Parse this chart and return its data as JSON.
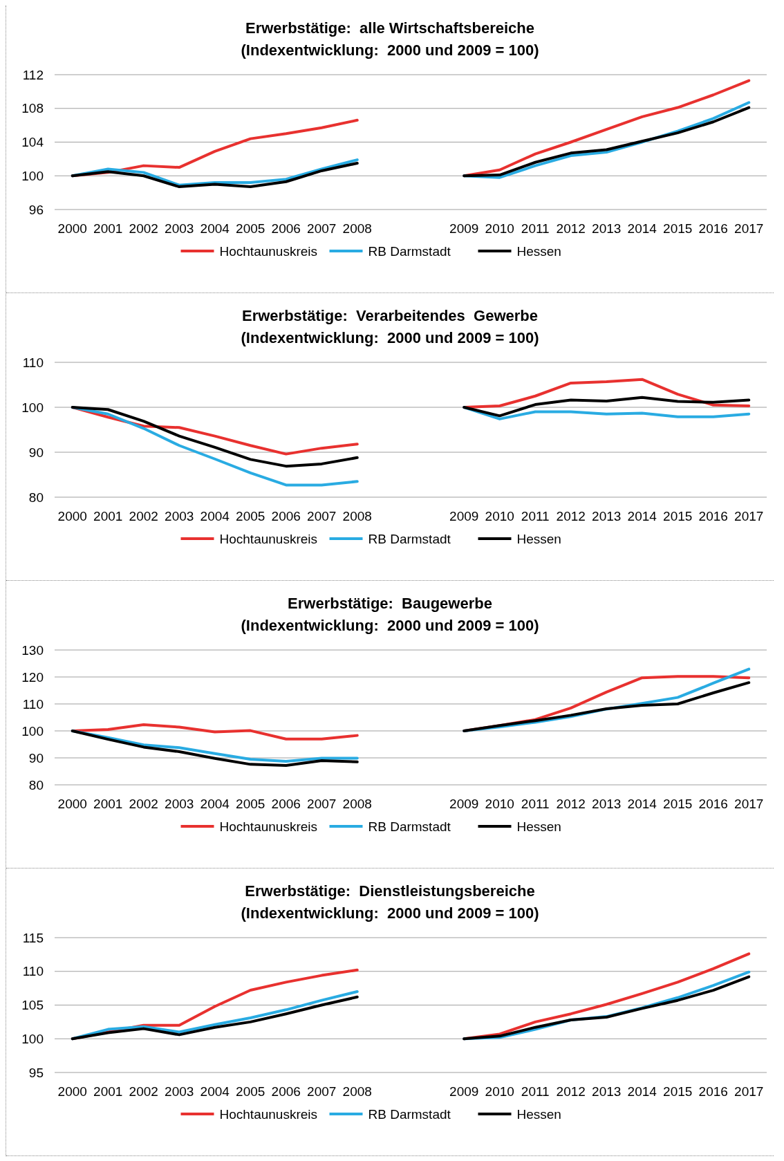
{
  "chart_data": [
    {
      "type": "line",
      "title": "Erwerbstätige:  alle Wirtschaftsbereiche",
      "subtitle": "(Indexentwicklung:  2000 und 2009 = 100)",
      "categories": [
        "2000",
        "2001",
        "2002",
        "2003",
        "2004",
        "2005",
        "2006",
        "2007",
        "2008",
        null,
        null,
        "2009",
        "2010",
        "2011",
        "2012",
        "2013",
        "2014",
        "2015",
        "2016",
        "2017"
      ],
      "ylim": [
        96,
        112
      ],
      "yticks": [
        96,
        100,
        104,
        108,
        112
      ],
      "grid": "y",
      "legend": "bottom",
      "marker": "none",
      "line_style": "solid",
      "series": [
        {
          "name": "Hochtaunuskreis",
          "color": "#e8312f",
          "values": [
            100,
            100.4,
            101.2,
            101.0,
            102.9,
            104.4,
            105.0,
            105.7,
            106.6,
            null,
            null,
            100,
            100.7,
            102.6,
            104.0,
            105.5,
            107.0,
            108.1,
            109.6,
            111.3
          ]
        },
        {
          "name": "RB Darmstadt",
          "color": "#29abe2",
          "values": [
            100,
            100.8,
            100.4,
            98.9,
            99.2,
            99.2,
            99.6,
            100.8,
            101.9,
            null,
            null,
            100,
            99.8,
            101.2,
            102.4,
            102.8,
            104.0,
            105.3,
            106.8,
            108.7
          ]
        },
        {
          "name": "Hessen",
          "color": "#000000",
          "values": [
            100,
            100.5,
            100.0,
            98.7,
            99.0,
            98.7,
            99.3,
            100.6,
            101.5,
            null,
            null,
            100,
            100.1,
            101.6,
            102.7,
            103.1,
            104.1,
            105.1,
            106.4,
            108.1
          ]
        }
      ]
    },
    {
      "type": "line",
      "title": "Erwerbstätige:  Verarbeitendes  Gewerbe",
      "subtitle": "(Indexentwicklung:  2000 und 2009 = 100)",
      "categories": [
        "2000",
        "2001",
        "2002",
        "2003",
        "2004",
        "2005",
        "2006",
        "2007",
        "2008",
        null,
        null,
        "2009",
        "2010",
        "2011",
        "2012",
        "2013",
        "2014",
        "2015",
        "2016",
        "2017"
      ],
      "ylim": [
        80,
        110
      ],
      "yticks": [
        80,
        90,
        100,
        110
      ],
      "grid": "y",
      "legend": "bottom",
      "marker": "none",
      "line_style": "solid",
      "series": [
        {
          "name": "Hochtaunuskreis",
          "color": "#e8312f",
          "values": [
            100,
            97.8,
            95.8,
            95.5,
            93.6,
            91.5,
            89.6,
            90.9,
            91.8,
            null,
            null,
            100,
            100.3,
            102.5,
            105.4,
            105.7,
            106.2,
            102.9,
            100.5,
            100.3
          ]
        },
        {
          "name": "RB Darmstadt",
          "color": "#29abe2",
          "values": [
            100,
            98.5,
            95.3,
            91.5,
            88.5,
            85.4,
            82.7,
            82.7,
            83.5,
            null,
            null,
            100,
            97.4,
            99.0,
            99.0,
            98.5,
            98.7,
            97.9,
            97.9,
            98.5
          ]
        },
        {
          "name": "Hessen",
          "color": "#000000",
          "values": [
            100,
            99.5,
            96.9,
            93.6,
            91.1,
            88.4,
            86.9,
            87.4,
            88.8,
            null,
            null,
            100,
            98.1,
            100.6,
            101.6,
            101.4,
            102.2,
            101.3,
            101.1,
            101.6
          ]
        }
      ]
    },
    {
      "type": "line",
      "title": "Erwerbstätige:  Baugewerbe",
      "subtitle": "(Indexentwicklung:  2000 und 2009 = 100)",
      "categories": [
        "2000",
        "2001",
        "2002",
        "2003",
        "2004",
        "2005",
        "2006",
        "2007",
        "2008",
        null,
        null,
        "2009",
        "2010",
        "2011",
        "2012",
        "2013",
        "2014",
        "2015",
        "2016",
        "2017"
      ],
      "ylim": [
        80,
        130
      ],
      "yticks": [
        80,
        90,
        100,
        110,
        120,
        130
      ],
      "grid": "y",
      "legend": "bottom",
      "marker": "none",
      "line_style": "solid",
      "series": [
        {
          "name": "Hochtaunuskreis",
          "color": "#e8312f",
          "values": [
            100,
            100.5,
            102.3,
            101.4,
            99.6,
            100.1,
            97.0,
            97.0,
            98.3,
            null,
            null,
            100,
            102,
            104.2,
            108.5,
            114.4,
            119.7,
            120.2,
            120.2,
            119.7
          ]
        },
        {
          "name": "RB Darmstadt",
          "color": "#29abe2",
          "values": [
            100,
            97.5,
            94.8,
            93.8,
            91.6,
            89.5,
            88.7,
            89.9,
            89.9,
            null,
            null,
            100,
            101.5,
            103.2,
            105.3,
            108.1,
            110.2,
            112.4,
            117.7,
            122.9
          ]
        },
        {
          "name": "Hessen",
          "color": "#000000",
          "values": [
            100,
            96.9,
            94.0,
            92.3,
            89.8,
            87.6,
            87.2,
            89.0,
            88.5,
            null,
            null,
            100,
            102,
            103.8,
            105.8,
            108.2,
            109.5,
            110.0,
            114.1,
            117.9
          ]
        }
      ]
    },
    {
      "type": "line",
      "title": "Erwerbstätige:  Dienstleistungsbereiche",
      "subtitle": "(Indexentwicklung:  2000 und 2009 = 100)",
      "categories": [
        "2000",
        "2001",
        "2002",
        "2003",
        "2004",
        "2005",
        "2006",
        "2007",
        "2008",
        null,
        null,
        "2009",
        "2010",
        "2011",
        "2012",
        "2013",
        "2014",
        "2015",
        "2016",
        "2017"
      ],
      "ylim": [
        95,
        115
      ],
      "yticks": [
        95,
        100,
        105,
        110,
        115
      ],
      "grid": "y",
      "legend": "bottom",
      "marker": "none",
      "line_style": "solid",
      "series": [
        {
          "name": "Hochtaunuskreis",
          "color": "#e8312f",
          "values": [
            100,
            101.0,
            102.0,
            102.0,
            104.8,
            107.2,
            108.4,
            109.4,
            110.2,
            null,
            null,
            100,
            100.7,
            102.5,
            103.7,
            105.1,
            106.7,
            108.4,
            110.4,
            112.6
          ]
        },
        {
          "name": "RB Darmstadt",
          "color": "#29abe2",
          "values": [
            100,
            101.4,
            101.8,
            101.0,
            102.1,
            103.1,
            104.3,
            105.7,
            107.0,
            null,
            null,
            100,
            100.2,
            101.4,
            102.8,
            103.3,
            104.6,
            106.1,
            107.9,
            109.9
          ]
        },
        {
          "name": "Hessen",
          "color": "#000000",
          "values": [
            100,
            100.9,
            101.5,
            100.6,
            101.7,
            102.5,
            103.7,
            105.0,
            106.2,
            null,
            null,
            100,
            100.4,
            101.7,
            102.8,
            103.2,
            104.5,
            105.7,
            107.2,
            109.2
          ]
        }
      ]
    }
  ]
}
